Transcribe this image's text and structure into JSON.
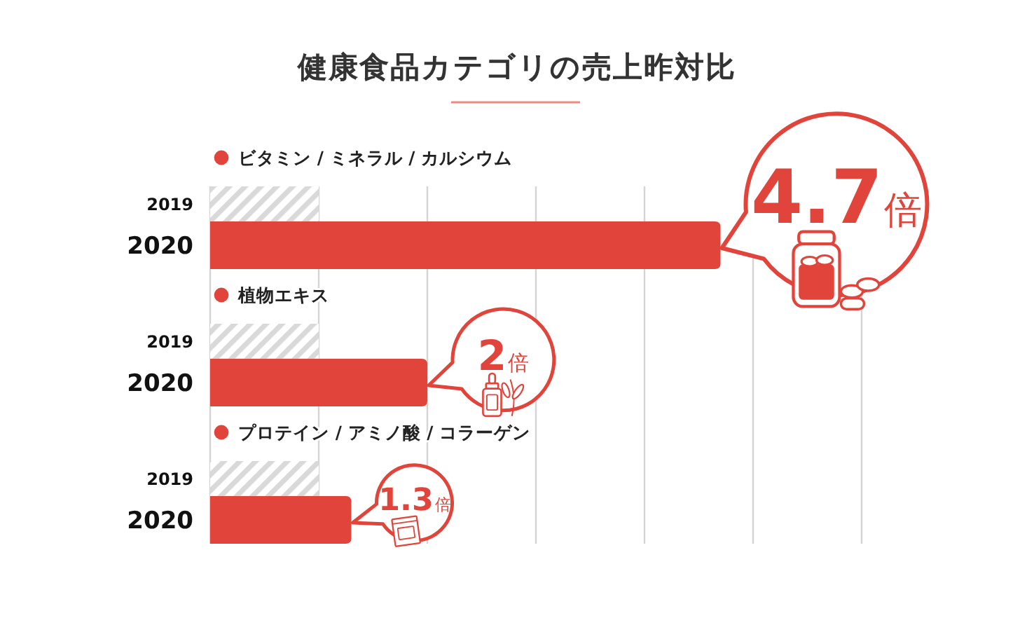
{
  "chart_data": {
    "type": "bar",
    "orientation": "horizontal",
    "title": "健康食品カテゴリの売上昨対比",
    "categories": [
      "ビタミン / ミネラル / カルシウム",
      "植物エキス",
      "プロテイン / アミノ酸 / コラーゲン"
    ],
    "series": [
      {
        "name": "2019",
        "color": "#d9d9d9",
        "values": [
          1,
          1,
          1
        ]
      },
      {
        "name": "2020",
        "color": "#e0443a",
        "values": [
          4.7,
          2,
          1.3
        ],
        "value_labels": [
          "4.7倍",
          "2倍",
          "1.3倍"
        ]
      }
    ],
    "xlim": [
      0,
      6
    ],
    "xticks": [
      {
        "value": 0,
        "label": null
      },
      {
        "value": 1,
        "label": null
      },
      {
        "value": 2,
        "label": null
      },
      {
        "value": 3,
        "label": null
      },
      {
        "value": 4,
        "label": null
      },
      {
        "value": 5,
        "label": null
      },
      {
        "value": 6,
        "label": null
      }
    ],
    "grid": "x",
    "tick_labels": "y"
  }
}
